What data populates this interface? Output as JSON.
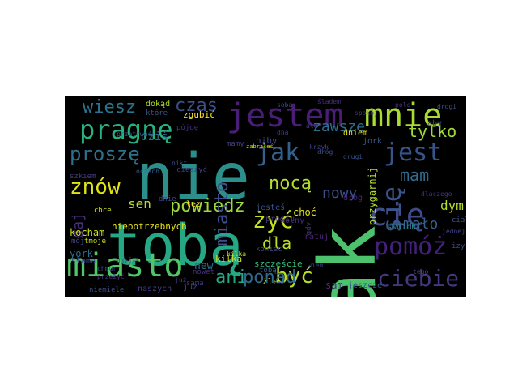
{
  "canvas": {
    "background": "#000000"
  },
  "words": [
    {
      "text": "nie",
      "color": "#2d8f8c"
    },
    {
      "text": "tak",
      "color": "#4cc26c"
    },
    {
      "text": "tobą",
      "color": "#25a883"
    },
    {
      "text": "jestem",
      "color": "#4a1d76"
    },
    {
      "text": "mnie",
      "color": "#aadc32"
    },
    {
      "text": "miasto",
      "color": "#52c569"
    },
    {
      "text": "pragnę",
      "color": "#2ab07f"
    },
    {
      "text": "cię",
      "color": "#3f4a8a"
    },
    {
      "text": "pomóż",
      "color": "#43207a"
    },
    {
      "text": "jest",
      "color": "#36548b"
    },
    {
      "text": "się",
      "color": "#3b538b"
    },
    {
      "text": "znów",
      "color": "#dfe318"
    },
    {
      "text": "jak",
      "color": "#34608d"
    },
    {
      "text": "ciebie",
      "color": "#44397f"
    },
    {
      "text": "proszę",
      "color": "#2c718e"
    },
    {
      "text": "być",
      "color": "#b8de29"
    },
    {
      "text": "ani",
      "color": "#22a884"
    },
    {
      "text": "ponad",
      "color": "#31688e"
    },
    {
      "text": "żyć",
      "color": "#c2df23"
    },
    {
      "text": "powiedz",
      "color": "#9dd93b"
    },
    {
      "text": "wiesz",
      "color": "#2c738e"
    },
    {
      "text": "czas",
      "color": "#3c4f8a"
    },
    {
      "text": "miasto",
      "color": "#3d4e8a"
    },
    {
      "text": "nocą",
      "color": "#b4de2c"
    },
    {
      "text": "zawsze",
      "color": "#2e6e8e"
    },
    {
      "text": "tylko",
      "color": "#a0da39"
    },
    {
      "text": "mam",
      "color": "#2f6c8e"
    },
    {
      "text": "nowy",
      "color": "#3b518b"
    },
    {
      "text": "mało",
      "color": "#33628d"
    },
    {
      "text": "dla",
      "color": "#bddf26"
    },
    {
      "text": "dym",
      "color": "#b5de2b"
    },
    {
      "text": "sen",
      "color": "#b8de29"
    },
    {
      "text": "daj",
      "color": "#472d7b"
    },
    {
      "text": "dziś",
      "color": "#31678e"
    },
    {
      "text": "szczęście",
      "color": "#35b779"
    },
    {
      "text": "kocham",
      "color": "#cde11d"
    },
    {
      "text": "przygarnij",
      "color": "#b0dd2f"
    },
    {
      "text": "york",
      "color": "#2d708e"
    },
    {
      "text": "niepotrzebnych",
      "color": "#e7e419"
    },
    {
      "text": "niby",
      "color": "#414487"
    },
    {
      "text": "jeszcze",
      "color": "#3a548c"
    },
    {
      "text": "sam",
      "color": "#46307e"
    },
    {
      "text": "new",
      "color": "#2c728e"
    },
    {
      "text": "moje",
      "color": "#38588c"
    },
    {
      "text": "kilka",
      "color": "#c8e020"
    },
    {
      "text": "zgubić",
      "color": "#fde725"
    },
    {
      "text": "jesteś",
      "color": "#3b528b"
    },
    {
      "text": "choć",
      "color": "#e3e418"
    },
    {
      "text": "dróg",
      "color": "#482576"
    },
    {
      "text": "swoich",
      "color": "#25838e"
    },
    {
      "text": "tobą",
      "color": "#33628d"
    },
    {
      "text": "sama",
      "color": "#453781"
    },
    {
      "text": "niemiele",
      "color": "#3e4c8a"
    },
    {
      "text": "naszych",
      "color": "#433e85"
    },
    {
      "text": "żle",
      "color": "#c0df25"
    },
    {
      "text": "koniec",
      "color": "#3e4a89"
    },
    {
      "text": "wolny",
      "color": "#472c7a"
    },
    {
      "text": "łez",
      "color": "#fde725"
    },
    {
      "text": "pójdę",
      "color": "#46327e"
    },
    {
      "text": "cieszyć",
      "color": "#424086"
    },
    {
      "text": "mamy",
      "color": "#433d84"
    },
    {
      "text": "słoma",
      "color": "#3e4989"
    },
    {
      "text": "dokąd",
      "color": "#b0dd2f"
    },
    {
      "text": "które",
      "color": "#3a538b"
    },
    {
      "text": "dnie",
      "color": "#414487"
    },
    {
      "text": "prostu",
      "color": "#453882"
    },
    {
      "text": "zabrałeś",
      "color": "#dae319"
    },
    {
      "text": "ratuj",
      "color": "#482677"
    },
    {
      "text": "juz",
      "color": "#3e4a89"
    },
    {
      "text": "jork",
      "color": "#38598c"
    },
    {
      "text": "aby",
      "color": "#3f4788"
    },
    {
      "text": "ciał",
      "color": "#3b528b"
    },
    {
      "text": "izy",
      "color": "#3d4d8a"
    },
    {
      "text": "jednej",
      "color": "#424186"
    },
    {
      "text": "dniem",
      "color": "#e7e419"
    },
    {
      "text": "przetrwać",
      "color": "#365c8d"
    },
    {
      "text": "śladem",
      "color": "#46307e"
    },
    {
      "text": "dna",
      "color": "#443983"
    },
    {
      "text": "dróg",
      "color": "#3d4e8a"
    },
    {
      "text": "gdy",
      "color": "#463480"
    },
    {
      "text": "chce",
      "color": "#d2e21b"
    },
    {
      "text": "mój",
      "color": "#3f4788"
    },
    {
      "text": "tmoje",
      "color": "#c2df23"
    },
    {
      "text": "nowet",
      "color": "#46327e"
    },
    {
      "text": "krzyk",
      "color": "#424086"
    },
    {
      "text": "drugi",
      "color": "#3b528b"
    },
    {
      "text": "szkiem",
      "color": "#433e85"
    },
    {
      "text": "chmur",
      "color": "#3d4e8a"
    },
    {
      "text": "przeżyć",
      "color": "#463480"
    },
    {
      "text": "kilka",
      "color": "#c8e020"
    },
    {
      "text": "tego",
      "color": "#3f4788"
    },
    {
      "text": "już",
      "color": "#453882"
    },
    {
      "text": "ale",
      "color": "#424086"
    },
    {
      "text": "drogi",
      "color": "#3b528b"
    },
    {
      "text": "pole",
      "color": "#46307e"
    },
    {
      "text": "sobą",
      "color": "#3e4a89"
    },
    {
      "text": "spokój",
      "color": "#443983"
    },
    {
      "text": "oczach",
      "color": "#38598c"
    },
    {
      "text": "nikt",
      "color": "#3d4d8a"
    },
    {
      "text": "dlaczego",
      "color": "#463480"
    },
    {
      "text": "wiem",
      "color": "#424186"
    }
  ]
}
